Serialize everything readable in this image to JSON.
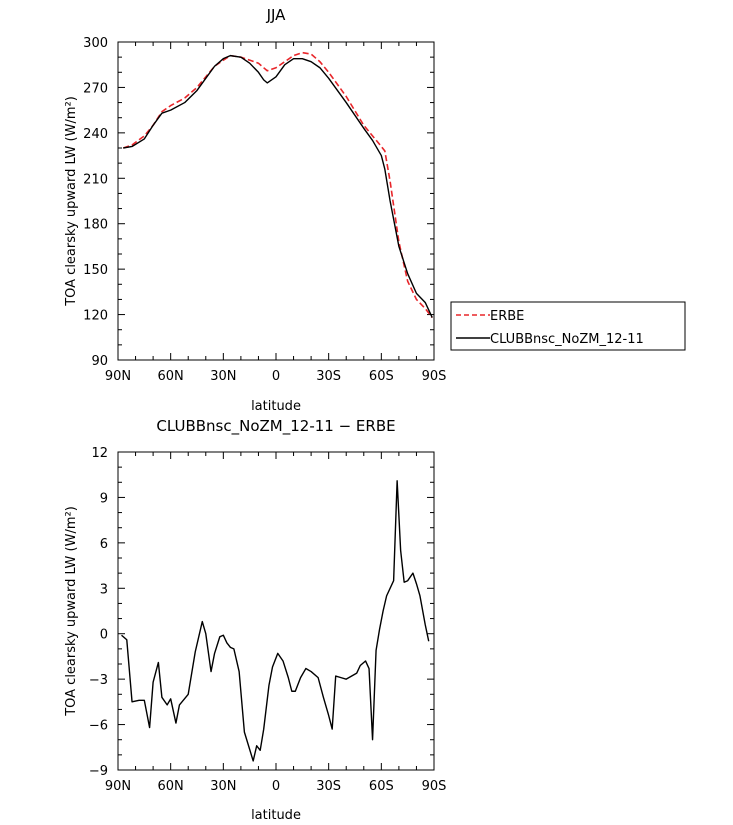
{
  "chart_data": [
    {
      "type": "line",
      "title": "JJA",
      "xlabel": "latitude",
      "ylabel": "TOA clearsky upward LW (W/m²)",
      "xlim": [
        -90,
        90
      ],
      "ylim": [
        90,
        300
      ],
      "x_ticks": [
        -90,
        -60,
        -30,
        0,
        30,
        60,
        90
      ],
      "x_tick_labels": [
        "90N",
        "60N",
        "30N",
        "0",
        "30S",
        "60S",
        "90S"
      ],
      "y_ticks": [
        90,
        120,
        150,
        180,
        210,
        240,
        270,
        300
      ],
      "y_tick_labels": [
        "90",
        "120",
        "150",
        "180",
        "210",
        "240",
        "270",
        "300"
      ],
      "legend": "right",
      "series": [
        {
          "name": "ERBE",
          "color": "#e8262a",
          "dash": true,
          "x": [
            -87,
            -82,
            -75,
            -70,
            -65,
            -60,
            -52,
            -45,
            -40,
            -35,
            -30,
            -26,
            -20,
            -15,
            -10,
            -5,
            0,
            5,
            10,
            15,
            20,
            25,
            30,
            40,
            50,
            60,
            62,
            65,
            70,
            75,
            80,
            85,
            89
          ],
          "y": [
            230,
            232,
            238,
            245,
            254,
            258,
            263,
            270,
            277,
            284,
            288,
            291,
            290,
            288,
            286,
            281,
            283,
            287,
            291,
            293,
            292,
            287,
            280,
            264,
            245,
            231,
            228,
            208,
            168,
            142,
            130,
            124,
            118
          ]
        },
        {
          "name": "CLUBBnsc_NoZM_12-11",
          "color": "#000000",
          "dash": false,
          "x": [
            -87,
            -82,
            -75,
            -70,
            -65,
            -60,
            -52,
            -45,
            -40,
            -35,
            -30,
            -26,
            -20,
            -15,
            -10,
            -7,
            -5,
            0,
            5,
            10,
            15,
            20,
            25,
            30,
            40,
            50,
            55,
            60,
            62,
            65,
            70,
            75,
            80,
            85,
            89
          ],
          "y": [
            230,
            231,
            236,
            245,
            253,
            255,
            260,
            268,
            276,
            284,
            289,
            291,
            290,
            286,
            280,
            275,
            273,
            277,
            285,
            289,
            289,
            287,
            283,
            276,
            260,
            243,
            235,
            225,
            216,
            195,
            165,
            147,
            134,
            128,
            118
          ]
        }
      ]
    },
    {
      "type": "line",
      "title": "CLUBBnsc_NoZM_12-11 − ERBE",
      "xlabel": "latitude",
      "ylabel": "TOA clearsky upward LW (W/m²)",
      "xlim": [
        -90,
        90
      ],
      "ylim": [
        -9,
        12
      ],
      "x_ticks": [
        -90,
        -60,
        -30,
        0,
        30,
        60,
        90
      ],
      "x_tick_labels": [
        "90N",
        "60N",
        "30N",
        "0",
        "30S",
        "60S",
        "90S"
      ],
      "y_ticks": [
        -9,
        -6,
        -3,
        0,
        3,
        6,
        9,
        12
      ],
      "y_tick_labels": [
        "−9",
        "−6",
        "−3",
        "0",
        "3",
        "6",
        "9",
        "12"
      ],
      "series": [
        {
          "color": "#000000",
          "x": [
            -88,
            -85,
            -82,
            -78,
            -75,
            -72,
            -70,
            -67,
            -65,
            -62,
            -60,
            -57,
            -55,
            -50,
            -46,
            -42,
            -40,
            -37,
            -35,
            -32,
            -30,
            -28,
            -26,
            -24,
            -21,
            -18,
            -13,
            -11,
            -9,
            -7,
            -4,
            -2,
            1,
            4,
            7,
            9,
            11,
            14,
            17,
            20,
            24,
            27,
            30,
            32,
            34,
            37,
            40,
            43,
            46,
            48,
            51,
            53,
            55,
            57,
            59,
            61,
            63,
            67,
            69,
            71,
            73,
            75,
            78,
            80,
            82,
            85,
            87
          ],
          "y": [
            -0.1,
            -0.4,
            -4.5,
            -4.4,
            -4.4,
            -6.2,
            -3.2,
            -1.9,
            -4.2,
            -4.7,
            -4.3,
            -5.9,
            -4.7,
            -4.0,
            -1.2,
            0.8,
            0.0,
            -2.5,
            -1.3,
            -0.2,
            -0.1,
            -0.6,
            -0.9,
            -1.0,
            -2.5,
            -6.5,
            -8.4,
            -7.4,
            -7.7,
            -6.3,
            -3.4,
            -2.2,
            -1.3,
            -1.8,
            -2.9,
            -3.8,
            -3.8,
            -2.9,
            -2.3,
            -2.5,
            -2.9,
            -4.2,
            -5.4,
            -6.3,
            -2.8,
            -2.9,
            -3.0,
            -2.8,
            -2.6,
            -2.1,
            -1.8,
            -2.3,
            -7.0,
            -1.1,
            0.3,
            1.5,
            2.5,
            3.5,
            10.1,
            5.5,
            3.4,
            3.5,
            4.0,
            3.3,
            2.5,
            0.6,
            -0.5
          ]
        }
      ]
    }
  ]
}
